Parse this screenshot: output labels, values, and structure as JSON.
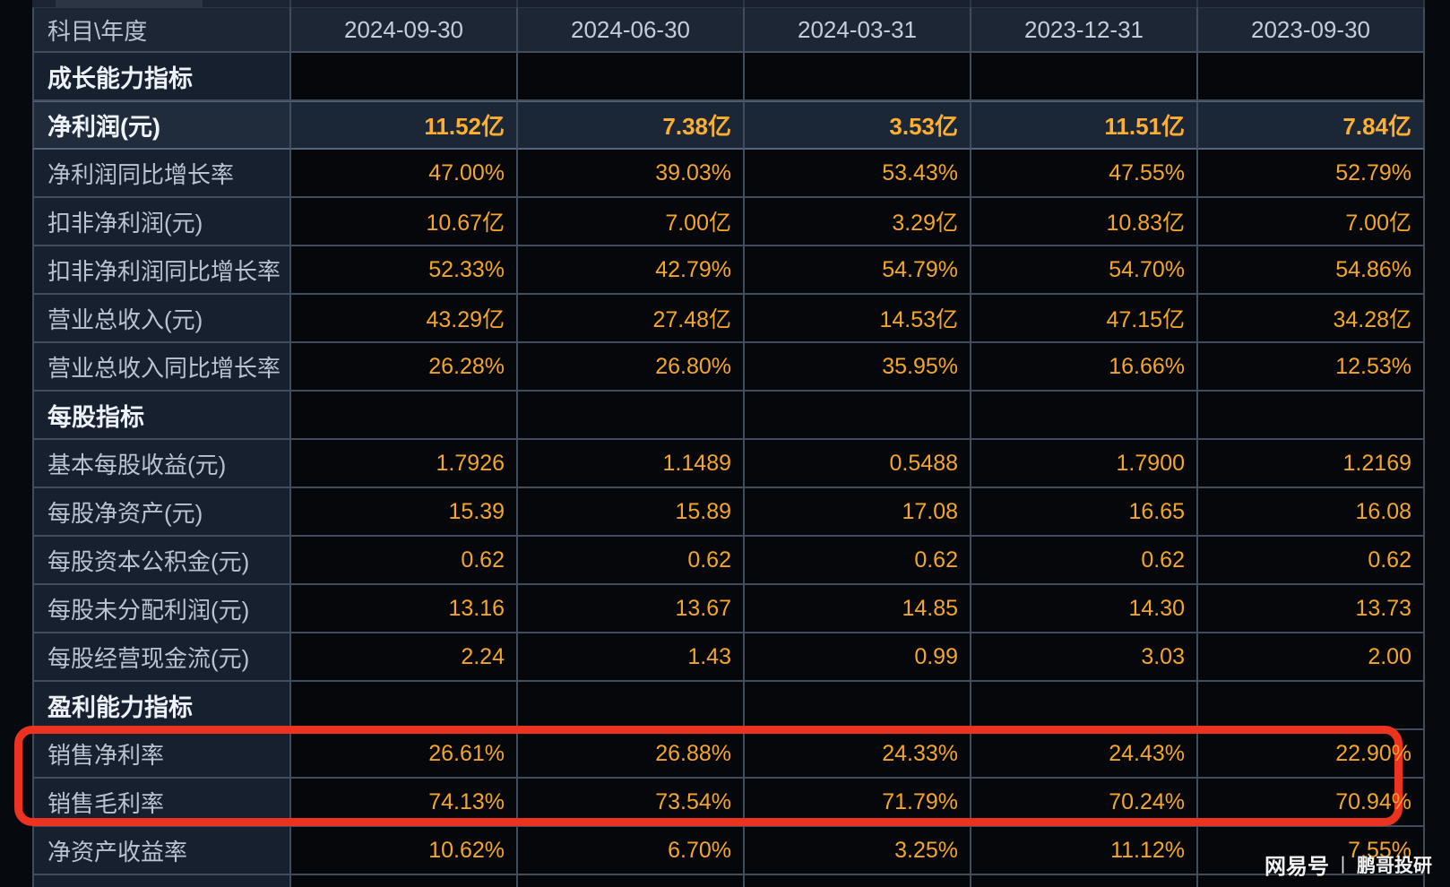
{
  "page": {
    "background": "#06090d",
    "accent_orange": "#f3a62a",
    "annotation_red": "#ec3220",
    "panel_navy": "#16202e",
    "highlight_navy": "#1b2637"
  },
  "table": {
    "corner_header": "科目\\年度",
    "columns": [
      "2024-09-30",
      "2024-06-30",
      "2024-03-31",
      "2023-12-31",
      "2023-09-30"
    ],
    "rows": [
      {
        "type": "section",
        "label": "成长能力指标",
        "values": [
          "",
          "",
          "",
          "",
          ""
        ]
      },
      {
        "type": "highlight",
        "label": "净利润(元)",
        "values": [
          "11.52亿",
          "7.38亿",
          "3.53亿",
          "11.51亿",
          "7.84亿"
        ]
      },
      {
        "type": "data",
        "label": "净利润同比增长率",
        "values": [
          "47.00%",
          "39.03%",
          "53.43%",
          "47.55%",
          "52.79%"
        ]
      },
      {
        "type": "data",
        "label": "扣非净利润(元)",
        "values": [
          "10.67亿",
          "7.00亿",
          "3.29亿",
          "10.83亿",
          "7.00亿"
        ]
      },
      {
        "type": "data",
        "label": "扣非净利润同比增长率",
        "values": [
          "52.33%",
          "42.79%",
          "54.79%",
          "54.70%",
          "54.86%"
        ]
      },
      {
        "type": "data",
        "label": "营业总收入(元)",
        "values": [
          "43.29亿",
          "27.48亿",
          "14.53亿",
          "47.15亿",
          "34.28亿"
        ]
      },
      {
        "type": "data",
        "label": "营业总收入同比增长率",
        "values": [
          "26.28%",
          "26.80%",
          "35.95%",
          "16.66%",
          "12.53%"
        ]
      },
      {
        "type": "section",
        "label": "每股指标",
        "values": [
          "",
          "",
          "",
          "",
          ""
        ]
      },
      {
        "type": "data",
        "label": "基本每股收益(元)",
        "values": [
          "1.7926",
          "1.1489",
          "0.5488",
          "1.7900",
          "1.2169"
        ]
      },
      {
        "type": "data",
        "label": "每股净资产(元)",
        "values": [
          "15.39",
          "15.89",
          "17.08",
          "16.65",
          "16.08"
        ]
      },
      {
        "type": "data",
        "label": "每股资本公积金(元)",
        "values": [
          "0.62",
          "0.62",
          "0.62",
          "0.62",
          "0.62"
        ]
      },
      {
        "type": "data",
        "label": "每股未分配利润(元)",
        "values": [
          "13.16",
          "13.67",
          "14.85",
          "14.30",
          "13.73"
        ]
      },
      {
        "type": "data",
        "label": "每股经营现金流(元)",
        "values": [
          "2.24",
          "1.43",
          "0.99",
          "3.03",
          "2.00"
        ]
      },
      {
        "type": "section",
        "label": "盈利能力指标",
        "values": [
          "",
          "",
          "",
          "",
          ""
        ]
      },
      {
        "type": "data",
        "label": "销售净利率",
        "values": [
          "26.61%",
          "26.88%",
          "24.33%",
          "24.43%",
          "22.90%"
        ]
      },
      {
        "type": "data",
        "label": "销售毛利率",
        "values": [
          "74.13%",
          "73.54%",
          "71.79%",
          "70.24%",
          "70.94%"
        ]
      },
      {
        "type": "data",
        "label": "净资产收益率",
        "values": [
          "10.62%",
          "6.70%",
          "3.25%",
          "11.12%",
          "7.55%"
        ]
      }
    ]
  },
  "annotation": {
    "type": "highlight-box",
    "color": "#ec3220",
    "highlighted_rows": [
      "销售净利率",
      "销售毛利率"
    ]
  },
  "watermark": {
    "brand": "网易号",
    "separator": "丨",
    "author": "鹏哥投研"
  }
}
